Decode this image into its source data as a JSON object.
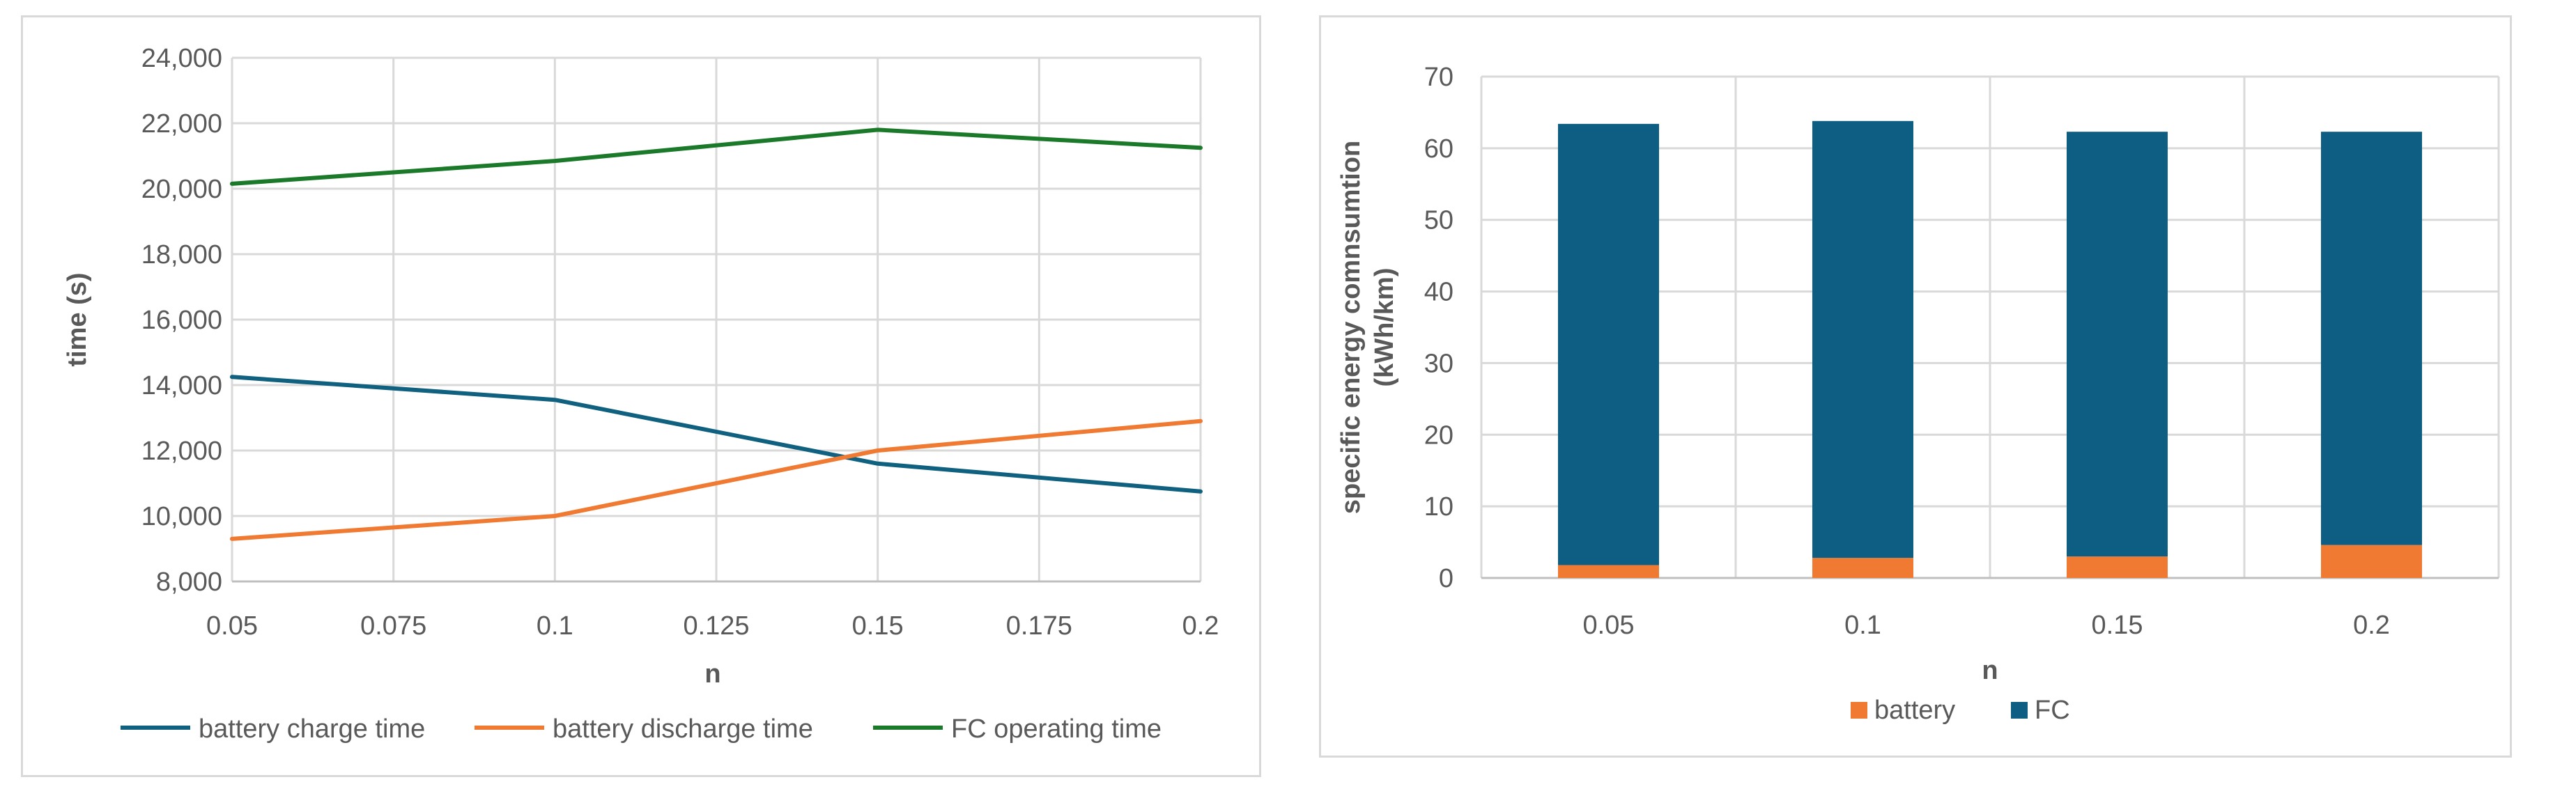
{
  "chart_data": [
    {
      "type": "line",
      "title": "",
      "xlabel": "n",
      "ylabel": "time (s)",
      "x": [
        "0.05",
        "0.075",
        "0.1",
        "0.125",
        "0.15",
        "0.175",
        "0.2"
      ],
      "x_values": [
        0.05,
        0.075,
        0.1,
        0.125,
        0.15,
        0.175,
        0.2
      ],
      "xlim": [
        0.05,
        0.2
      ],
      "ylim": [
        8000,
        24000
      ],
      "y_ticks": [
        "8,000",
        "10,000",
        "12,000",
        "14,000",
        "16,000",
        "18,000",
        "20,000",
        "22,000",
        "24,000"
      ],
      "y_tick_values": [
        8000,
        10000,
        12000,
        14000,
        16000,
        18000,
        20000,
        22000,
        24000
      ],
      "grid": true,
      "legend_position": "bottom",
      "series": [
        {
          "name": "battery charge time",
          "color": "#10617f",
          "points": [
            [
              0.05,
              14250
            ],
            [
              0.1,
              13550
            ],
            [
              0.15,
              11600
            ],
            [
              0.2,
              10750
            ]
          ]
        },
        {
          "name": "battery discharge time",
          "color": "#f07a32",
          "points": [
            [
              0.05,
              9300
            ],
            [
              0.1,
              10000
            ],
            [
              0.15,
              12000
            ],
            [
              0.2,
              12900
            ]
          ]
        },
        {
          "name": "FC operating time",
          "color": "#1a7a2a",
          "points": [
            [
              0.05,
              20150
            ],
            [
              0.1,
              20850
            ],
            [
              0.15,
              21800
            ],
            [
              0.2,
              21250
            ]
          ]
        }
      ]
    },
    {
      "type": "bar",
      "stacked": true,
      "title": "",
      "xlabel": "n",
      "ylabel": "specific energy comnsumtion",
      "ylabel_unit": "(kWh/km)",
      "categories": [
        "0.05",
        "0.1",
        "0.15",
        "0.2"
      ],
      "ylim": [
        0,
        70
      ],
      "y_ticks": [
        "0",
        "10",
        "20",
        "30",
        "40",
        "50",
        "60",
        "70"
      ],
      "y_tick_values": [
        0,
        10,
        20,
        30,
        40,
        50,
        60,
        70
      ],
      "grid": true,
      "legend_position": "bottom",
      "series": [
        {
          "name": "battery",
          "color": "#f07a32",
          "values": [
            1.8,
            2.8,
            3.0,
            4.6
          ]
        },
        {
          "name": "FC",
          "color": "#0d5e82",
          "values": [
            61.6,
            61.0,
            59.3,
            57.7
          ]
        }
      ]
    }
  ]
}
